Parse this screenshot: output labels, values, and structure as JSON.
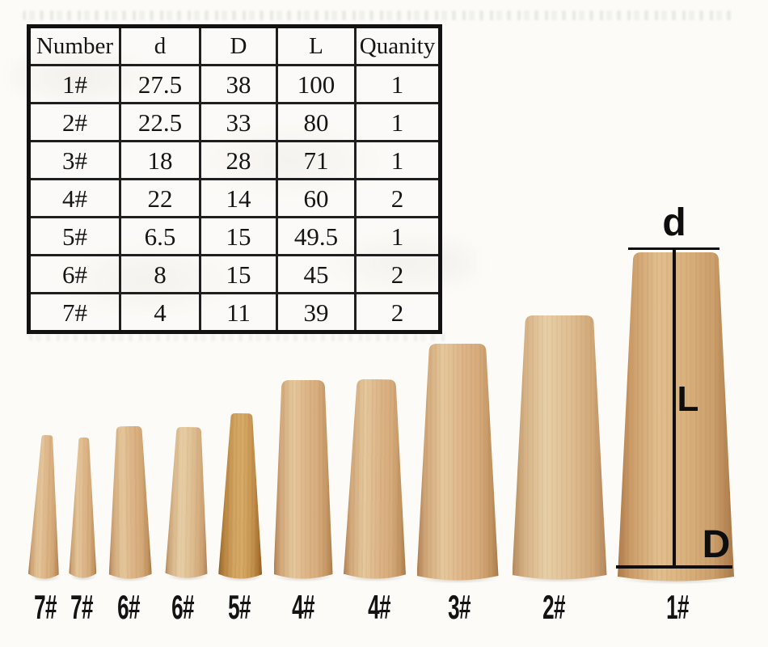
{
  "table": {
    "headers": [
      "Number",
      "d",
      "D",
      "L",
      "Quanity"
    ],
    "rows": [
      [
        "1#",
        "27.5",
        "38",
        "100",
        "1"
      ],
      [
        "2#",
        "22.5",
        "33",
        "80",
        "1"
      ],
      [
        "3#",
        "18",
        "28",
        "71",
        "1"
      ],
      [
        "4#",
        "22",
        "14",
        "60",
        "2"
      ],
      [
        "5#",
        "6.5",
        "15",
        "49.5",
        "1"
      ],
      [
        "6#",
        "8",
        "15",
        "45",
        "2"
      ],
      [
        "7#",
        "4",
        "11",
        "39",
        "2"
      ]
    ]
  },
  "dimension_labels": {
    "top_diameter": "d",
    "length": "L",
    "bottom_diameter": "D"
  },
  "cone_labels": [
    "7#",
    "7#",
    "6#",
    "6#",
    "5#",
    "4#",
    "4#",
    "3#",
    "2#",
    "1#"
  ],
  "colors": {
    "background": "#fcfbf8",
    "annotation_line": "#0e0e0e",
    "table_border": "#121212",
    "wood_light": "#ddb588",
    "wood_pale": "#e8cfa6",
    "wood_gold": "#d3a562",
    "wood_medium": "#e2bf8f"
  }
}
